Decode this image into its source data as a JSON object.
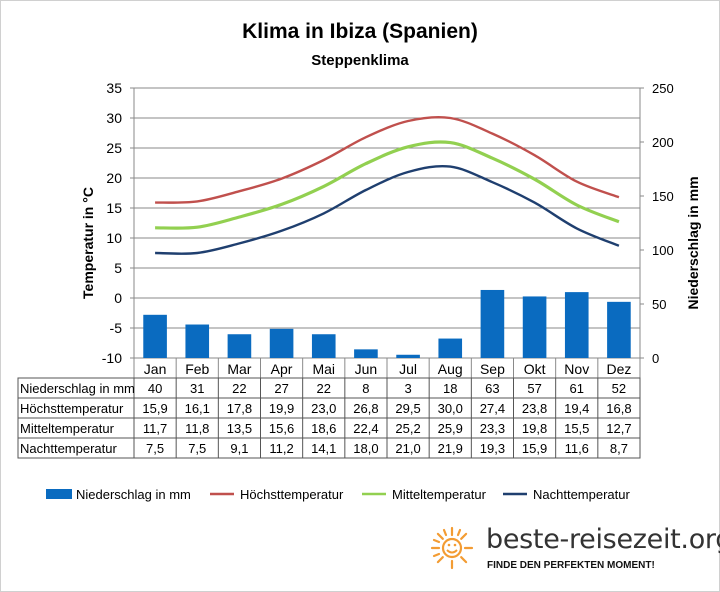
{
  "title": "Klima in Ibiza (Spanien)",
  "subtitle": "Steppenklima",
  "chart_data": {
    "type": "bar",
    "categories": [
      "Jan",
      "Feb",
      "Mar",
      "Apr",
      "Mai",
      "Jun",
      "Jul",
      "Aug",
      "Sep",
      "Okt",
      "Nov",
      "Dez"
    ],
    "ylabel_left": "Temperatur in °C",
    "ylabel_right": "Niederschlag in mm",
    "ylim_left": [
      -10,
      35
    ],
    "yticks_left": [
      "35",
      "30",
      "25",
      "20",
      "15",
      "10",
      "5",
      "0",
      "-5",
      "-10"
    ],
    "ylim_right": [
      0,
      250
    ],
    "yticks_right": [
      "250",
      "200",
      "150",
      "100",
      "50",
      "0"
    ],
    "grid": true,
    "legend_position": "bottom",
    "series": [
      {
        "name": "Niederschlag in mm",
        "type": "bar",
        "axis": "right",
        "color": "#0a6bc0",
        "values": [
          40,
          31,
          22,
          27,
          22,
          8,
          3,
          18,
          63,
          57,
          61,
          52
        ],
        "labels": [
          "40",
          "31",
          "22",
          "27",
          "22",
          "8",
          "3",
          "18",
          "63",
          "57",
          "61",
          "52"
        ]
      },
      {
        "name": "Höchsttemperatur",
        "type": "line",
        "axis": "left",
        "color": "#c0504d",
        "values": [
          15.9,
          16.1,
          17.8,
          19.9,
          23.0,
          26.8,
          29.5,
          30.0,
          27.4,
          23.8,
          19.4,
          16.8
        ],
        "labels": [
          "15,9",
          "16,1",
          "17,8",
          "19,9",
          "23,0",
          "26,8",
          "29,5",
          "30,0",
          "27,4",
          "23,8",
          "19,4",
          "16,8"
        ]
      },
      {
        "name": "Mitteltemperatur",
        "type": "line",
        "axis": "left",
        "color": "#92d050",
        "values": [
          11.7,
          11.8,
          13.5,
          15.6,
          18.6,
          22.4,
          25.2,
          25.9,
          23.3,
          19.8,
          15.5,
          12.7
        ],
        "labels": [
          "11,7",
          "11,8",
          "13,5",
          "15,6",
          "18,6",
          "22,4",
          "25,2",
          "25,9",
          "23,3",
          "19,8",
          "15,5",
          "12,7"
        ]
      },
      {
        "name": "Nachttemperatur",
        "type": "line",
        "axis": "left",
        "color": "#1f3f6f",
        "values": [
          7.5,
          7.5,
          9.1,
          11.2,
          14.1,
          18.0,
          21.0,
          21.9,
          19.3,
          15.9,
          11.6,
          8.7
        ],
        "labels": [
          "7,5",
          "7,5",
          "9,1",
          "11,2",
          "14,1",
          "18,0",
          "21,0",
          "21,9",
          "19,3",
          "15,9",
          "11,6",
          "8,7"
        ]
      }
    ]
  },
  "branding": {
    "name": "beste-reisezeit.org",
    "tagline": "FINDE DEN PERFEKTEN MOMENT!"
  }
}
